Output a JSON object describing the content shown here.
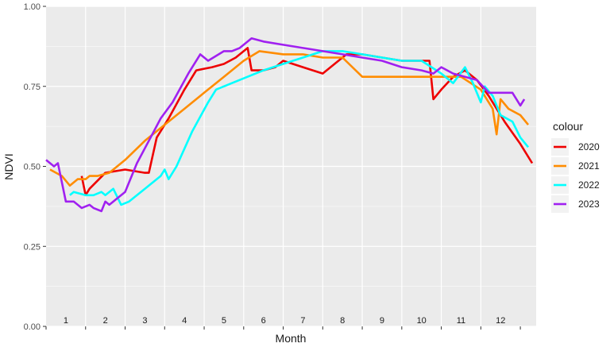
{
  "chart_data": {
    "type": "line",
    "xlabel": "Month",
    "ylabel": "NDVI",
    "xlim": [
      0,
      12.4
    ],
    "ylim": [
      0,
      1
    ],
    "y_ticks": [
      0.0,
      0.25,
      0.5,
      0.75,
      1.0
    ],
    "y_tick_labels": [
      "0.00",
      "0.25",
      "0.50",
      "0.75",
      "1.00"
    ],
    "month_labels": [
      "1",
      "2",
      "3",
      "4",
      "5",
      "6",
      "7",
      "8",
      "9",
      "10",
      "11",
      "12"
    ],
    "legend_title": "colour",
    "legend_position": "right",
    "grid": true,
    "series": [
      {
        "name": "2020",
        "color": "#ee0000",
        "points": [
          [
            0.9,
            0.47
          ],
          [
            1.0,
            0.41
          ],
          [
            1.1,
            0.43
          ],
          [
            1.5,
            0.48
          ],
          [
            2.0,
            0.49
          ],
          [
            2.5,
            0.48
          ],
          [
            2.6,
            0.48
          ],
          [
            2.8,
            0.59
          ],
          [
            3.1,
            0.65
          ],
          [
            3.5,
            0.74
          ],
          [
            3.8,
            0.8
          ],
          [
            4.2,
            0.81
          ],
          [
            4.5,
            0.82
          ],
          [
            4.8,
            0.84
          ],
          [
            5.0,
            0.86
          ],
          [
            5.1,
            0.87
          ],
          [
            5.2,
            0.8
          ],
          [
            5.5,
            0.8
          ],
          [
            5.8,
            0.81
          ],
          [
            6.0,
            0.83
          ],
          [
            6.5,
            0.81
          ],
          [
            7.0,
            0.79
          ],
          [
            7.3,
            0.82
          ],
          [
            7.6,
            0.85
          ],
          [
            8.0,
            0.85
          ],
          [
            8.5,
            0.84
          ],
          [
            9.0,
            0.83
          ],
          [
            9.5,
            0.83
          ],
          [
            9.7,
            0.83
          ],
          [
            9.8,
            0.71
          ],
          [
            10.0,
            0.74
          ],
          [
            10.3,
            0.78
          ],
          [
            10.6,
            0.8
          ],
          [
            10.9,
            0.77
          ],
          [
            11.2,
            0.72
          ],
          [
            11.6,
            0.64
          ],
          [
            12.0,
            0.57
          ],
          [
            12.3,
            0.51
          ]
        ]
      },
      {
        "name": "2021",
        "color": "#ff8c00",
        "points": [
          [
            0.1,
            0.49
          ],
          [
            0.4,
            0.47
          ],
          [
            0.6,
            0.44
          ],
          [
            0.8,
            0.46
          ],
          [
            1.0,
            0.46
          ],
          [
            1.1,
            0.47
          ],
          [
            1.3,
            0.47
          ],
          [
            1.6,
            0.48
          ],
          [
            2.0,
            0.52
          ],
          [
            2.5,
            0.58
          ],
          [
            3.0,
            0.63
          ],
          [
            3.5,
            0.68
          ],
          [
            4.0,
            0.73
          ],
          [
            4.5,
            0.78
          ],
          [
            5.0,
            0.83
          ],
          [
            5.4,
            0.86
          ],
          [
            6.0,
            0.85
          ],
          [
            6.5,
            0.85
          ],
          [
            7.0,
            0.84
          ],
          [
            7.5,
            0.84
          ],
          [
            8.0,
            0.78
          ],
          [
            8.5,
            0.78
          ],
          [
            9.0,
            0.78
          ],
          [
            9.5,
            0.78
          ],
          [
            10.0,
            0.78
          ],
          [
            10.5,
            0.78
          ],
          [
            11.0,
            0.74
          ],
          [
            11.3,
            0.68
          ],
          [
            11.4,
            0.6
          ],
          [
            11.5,
            0.71
          ],
          [
            11.7,
            0.68
          ],
          [
            12.0,
            0.66
          ],
          [
            12.2,
            0.63
          ]
        ]
      },
      {
        "name": "2022",
        "color": "#00ffff",
        "points": [
          [
            0.6,
            0.41
          ],
          [
            0.7,
            0.42
          ],
          [
            1.0,
            0.41
          ],
          [
            1.2,
            0.41
          ],
          [
            1.4,
            0.42
          ],
          [
            1.5,
            0.41
          ],
          [
            1.7,
            0.43
          ],
          [
            1.9,
            0.38
          ],
          [
            2.1,
            0.39
          ],
          [
            2.5,
            0.43
          ],
          [
            2.9,
            0.47
          ],
          [
            3.0,
            0.49
          ],
          [
            3.1,
            0.46
          ],
          [
            3.3,
            0.5
          ],
          [
            3.7,
            0.61
          ],
          [
            4.1,
            0.7
          ],
          [
            4.3,
            0.74
          ],
          [
            4.7,
            0.76
          ],
          [
            5.5,
            0.8
          ],
          [
            6.0,
            0.82
          ],
          [
            6.5,
            0.84
          ],
          [
            7.0,
            0.86
          ],
          [
            7.5,
            0.86
          ],
          [
            8.0,
            0.85
          ],
          [
            8.5,
            0.84
          ],
          [
            9.0,
            0.83
          ],
          [
            9.5,
            0.83
          ],
          [
            10.0,
            0.79
          ],
          [
            10.3,
            0.76
          ],
          [
            10.6,
            0.81
          ],
          [
            10.8,
            0.76
          ],
          [
            11.0,
            0.7
          ],
          [
            11.1,
            0.75
          ],
          [
            11.3,
            0.72
          ],
          [
            11.5,
            0.66
          ],
          [
            11.8,
            0.64
          ],
          [
            12.0,
            0.59
          ],
          [
            12.2,
            0.56
          ]
        ]
      },
      {
        "name": "2023",
        "color": "#a020f0",
        "points": [
          [
            0.0,
            0.52
          ],
          [
            0.2,
            0.5
          ],
          [
            0.3,
            0.51
          ],
          [
            0.5,
            0.39
          ],
          [
            0.7,
            0.39
          ],
          [
            0.9,
            0.37
          ],
          [
            1.1,
            0.38
          ],
          [
            1.2,
            0.37
          ],
          [
            1.4,
            0.36
          ],
          [
            1.5,
            0.39
          ],
          [
            1.6,
            0.38
          ],
          [
            1.8,
            0.4
          ],
          [
            2.0,
            0.42
          ],
          [
            2.3,
            0.51
          ],
          [
            2.6,
            0.58
          ],
          [
            2.9,
            0.65
          ],
          [
            3.2,
            0.7
          ],
          [
            3.6,
            0.79
          ],
          [
            3.9,
            0.85
          ],
          [
            4.1,
            0.83
          ],
          [
            4.5,
            0.86
          ],
          [
            4.7,
            0.86
          ],
          [
            4.9,
            0.87
          ],
          [
            5.2,
            0.9
          ],
          [
            5.5,
            0.89
          ],
          [
            6.0,
            0.88
          ],
          [
            6.5,
            0.87
          ],
          [
            7.0,
            0.86
          ],
          [
            7.5,
            0.85
          ],
          [
            8.0,
            0.84
          ],
          [
            8.5,
            0.83
          ],
          [
            9.0,
            0.81
          ],
          [
            9.5,
            0.8
          ],
          [
            9.8,
            0.79
          ],
          [
            10.0,
            0.81
          ],
          [
            10.3,
            0.79
          ],
          [
            10.6,
            0.78
          ],
          [
            10.9,
            0.77
          ],
          [
            11.2,
            0.73
          ],
          [
            11.5,
            0.73
          ],
          [
            11.8,
            0.73
          ],
          [
            12.0,
            0.69
          ],
          [
            12.1,
            0.71
          ]
        ]
      }
    ]
  }
}
